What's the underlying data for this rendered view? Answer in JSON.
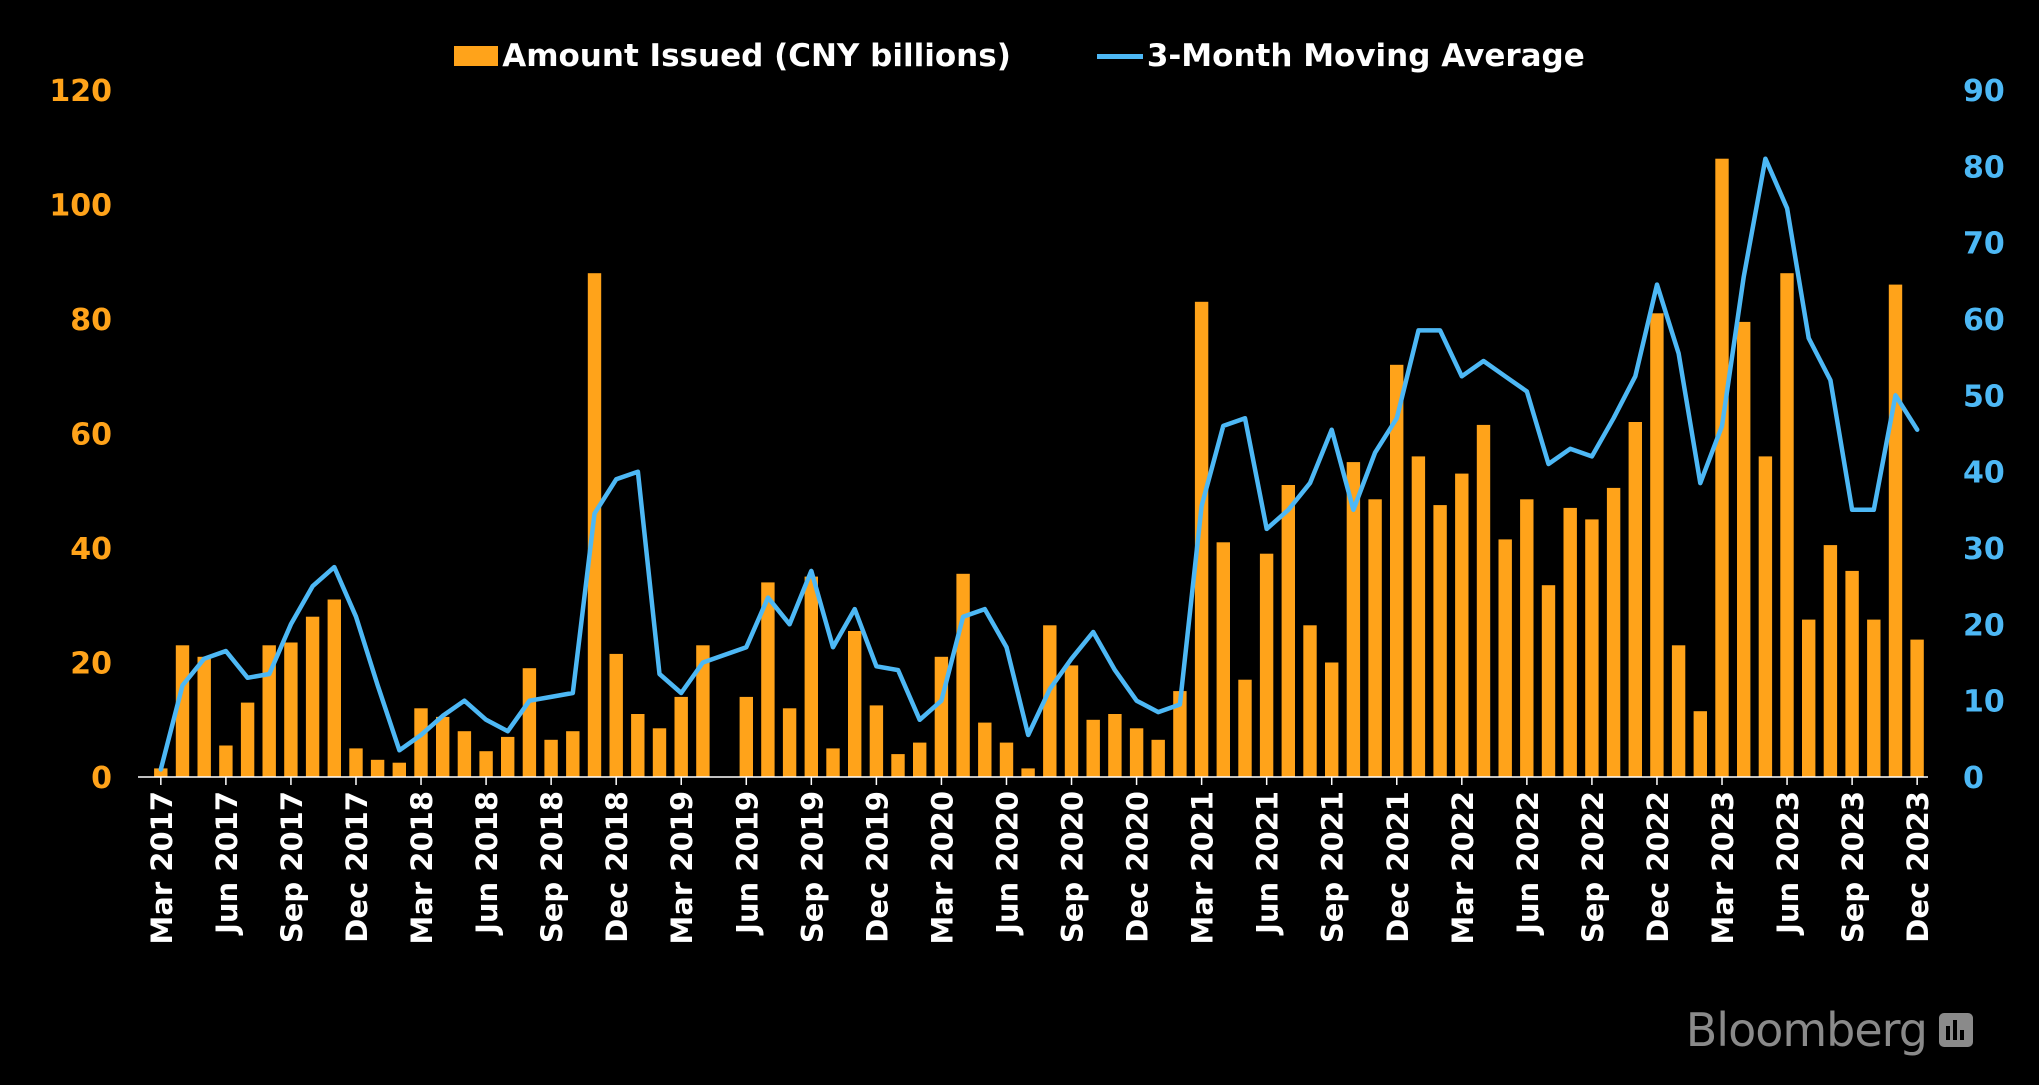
{
  "chart_data": {
    "type": "bar",
    "title": "",
    "legend": {
      "placement": "top-center"
    },
    "series": [
      {
        "name": "Amount Issued (CNY billions)",
        "type": "bar",
        "axis": "left",
        "color": "#FFA31A",
        "values": [
          1.5,
          23,
          21,
          5.5,
          13,
          23,
          23.5,
          28,
          31,
          5,
          3,
          2.5,
          12,
          10.5,
          8,
          4.5,
          7,
          19,
          6.5,
          8,
          88,
          21.5,
          11,
          8.5,
          14,
          23,
          0,
          14,
          34,
          12,
          35,
          5,
          25.5,
          12.5,
          4,
          6,
          21,
          35.5,
          9.5,
          6,
          1.5,
          26.5,
          19.5,
          10,
          11,
          8.5,
          6.5,
          15,
          83,
          41,
          17,
          39,
          51,
          26.5,
          20,
          55,
          48.5,
          72,
          56,
          47.5,
          53,
          61.5,
          41.5,
          48.5,
          33.5,
          47,
          45,
          50.5,
          62,
          81,
          23,
          11.5,
          108,
          79.5,
          56,
          88,
          27.5,
          40.5,
          36,
          27.5,
          86,
          24
        ]
      },
      {
        "name": "3-Month Moving Average",
        "type": "line",
        "axis": "right",
        "color": "#4DB8F5",
        "values": [
          1,
          12,
          15.5,
          16.5,
          13,
          13.5,
          20,
          25,
          27.5,
          21,
          12,
          3.5,
          5.5,
          8,
          10,
          7.5,
          6,
          10,
          10.5,
          11,
          34.5,
          39,
          40,
          13.5,
          11,
          15,
          16,
          17,
          23.5,
          20,
          27,
          17,
          22,
          14.5,
          14,
          7.5,
          10,
          21,
          22,
          17,
          5.5,
          11.5,
          15.5,
          19,
          14,
          10,
          8.5,
          9.5,
          35.5,
          46,
          47,
          32.5,
          35,
          38.5,
          45.5,
          35,
          42.5,
          47,
          58.5,
          58.5,
          52.5,
          54.5,
          52.5,
          50.5,
          41,
          43,
          42,
          47,
          52.5,
          64.5,
          55.5,
          38.5,
          46,
          65.5,
          81,
          74.5,
          57.5,
          52,
          35,
          35,
          50,
          45.5
        ]
      }
    ],
    "x_ticks": [
      "Mar 2017",
      "Jun 2017",
      "Sep 2017",
      "Dec 2017",
      "Mar 2018",
      "Jun 2018",
      "Sep 2018",
      "Dec 2018",
      "Mar 2019",
      "Jun 2019",
      "Sep 2019",
      "Dec 2019",
      "Mar 2020",
      "Jun 2020",
      "Sep 2020",
      "Dec 2020",
      "Mar 2021",
      "Jun 2021",
      "Sep 2021",
      "Dec 2021",
      "Mar 2022",
      "Jun 2022",
      "Sep 2022",
      "Dec 2022",
      "Mar 2023",
      "Jun 2023",
      "Sep 2023",
      "Dec 2023"
    ],
    "left_axis": {
      "min": 0,
      "max": 120,
      "ticks": [
        0,
        20,
        40,
        60,
        80,
        100,
        120
      ],
      "color": "#FFA31A"
    },
    "right_axis": {
      "min": 0,
      "max": 90,
      "ticks": [
        0,
        10,
        20,
        30,
        40,
        50,
        60,
        70,
        80,
        90
      ],
      "color": "#4DB8F5"
    },
    "xlabel": "",
    "ylabel": "",
    "grid": false
  },
  "brand": {
    "name": "Bloomberg",
    "icon": "bloomberg-terminal-icon"
  }
}
